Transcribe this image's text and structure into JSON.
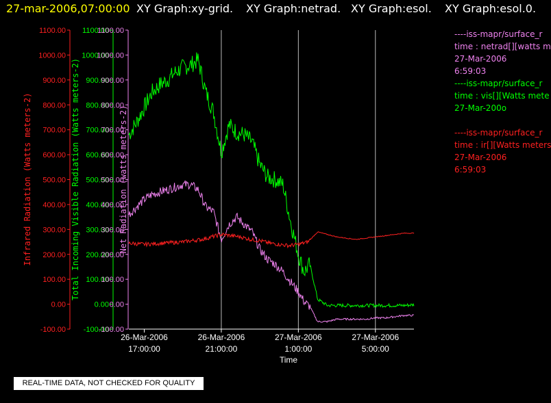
{
  "header": {
    "timestamp": "27-mar-2006,07:00:00",
    "titles": [
      "XY Graph:xy-grid.",
      "XY Graph:netrad.",
      "XY Graph:esol.",
      "XY Graph:esol.0."
    ]
  },
  "notice": "REAL-TIME DATA, NOT CHECKED FOR QUALITY",
  "colors": {
    "ir": "#ff2020",
    "vis": "#00ff00",
    "net": "#ee82ee",
    "title_ts": "#ffff00",
    "text": "#ffffff"
  },
  "legend": [
    {
      "color": "#ee82ee",
      "lines": [
        "----iss-mapr/surface_r",
        "time : netrad[][watts m",
        "27-Mar-2006",
        "6:59:03"
      ]
    },
    {
      "color": "#00ff00",
      "lines": [
        "----iss-mapr/surface_r",
        "time : vis[][Watts mete",
        "27-Mar-200o"
      ]
    },
    {
      "color": "#ff2020",
      "lines": [
        "----iss-mapr/surface_r",
        "time : ir[][Watts meters",
        "27-Mar-2006",
        "6:59:03"
      ]
    }
  ],
  "chart_data": {
    "type": "line",
    "xlabel": "Time",
    "x_ticks": [
      {
        "hour": 17,
        "label": [
          "26-Mar-2006",
          "17:00:00"
        ]
      },
      {
        "hour": 21,
        "label": [
          "26-Mar-2006",
          "21:00:00"
        ]
      },
      {
        "hour": 25,
        "label": [
          "27-Mar-2006",
          "1:00:00"
        ]
      },
      {
        "hour": 29,
        "label": [
          "27-Mar-2006",
          "5:00:00"
        ]
      }
    ],
    "x_unit": "hours from 26-Mar-2006 00:00",
    "xlim": [
      16.2,
      31.0
    ],
    "grid": "vertical lines at 21:00, 1:00, 5:00",
    "y_axes": [
      {
        "label": "Infrared Radiation (Watts meters-2)",
        "color": "#ff2020",
        "range": [
          -100,
          1100
        ],
        "ticks": [
          "1100.00",
          "1000.00",
          "900.00",
          "800.00",
          "700.00",
          "600.00",
          "500.00",
          "400.00",
          "300.00",
          "200.00",
          "100.00",
          "0.00",
          "-100.00"
        ]
      },
      {
        "label": "Total Incoming Visible Radiation (Watts meters-2)",
        "color": "#00ff00",
        "range": [
          -100,
          1100
        ],
        "ticks": [
          "1100.00",
          "1000.00",
          "900.00",
          "800.00",
          "700.00",
          "600.00",
          "500.00",
          "400.00",
          "300.00",
          "200.00",
          "100.00",
          "0.00",
          "-100.00"
        ]
      },
      {
        "label": "Net Radiation (watts meters-2)",
        "color": "#ee82ee",
        "range": [
          -100,
          1100
        ],
        "ticks": [
          "1100.00",
          "1000.00",
          "900.00",
          "800.00",
          "700.00",
          "600.00",
          "500.00",
          "400.00",
          "300.00",
          "200.00",
          "100.00",
          "0.00",
          "-100.00"
        ]
      }
    ],
    "series": [
      {
        "name": "vis",
        "color": "#00ff00",
        "x": [
          16.2,
          16.6,
          17.0,
          17.4,
          17.8,
          18.2,
          18.6,
          19.0,
          19.4,
          19.8,
          20.2,
          20.6,
          21.0,
          21.4,
          21.8,
          22.2,
          22.6,
          23.0,
          23.4,
          23.8,
          24.2,
          24.6,
          25.0,
          25.3,
          25.6,
          26.0,
          26.5,
          27.0,
          27.5,
          28.0,
          28.5,
          29.0,
          29.5,
          30.0,
          30.5,
          31.0
        ],
        "y": [
          680,
          730,
          790,
          850,
          880,
          900,
          930,
          950,
          960,
          980,
          850,
          770,
          610,
          720,
          690,
          680,
          650,
          560,
          510,
          500,
          480,
          330,
          200,
          130,
          160,
          20,
          -5,
          -5,
          -5,
          -5,
          -5,
          -5,
          -5,
          -5,
          -5,
          -2
        ]
      },
      {
        "name": "netrad",
        "color": "#ee82ee",
        "x": [
          16.2,
          16.6,
          17.0,
          17.4,
          17.8,
          18.2,
          18.6,
          19.0,
          19.4,
          19.8,
          20.2,
          20.6,
          21.0,
          21.4,
          21.8,
          22.2,
          22.6,
          23.0,
          23.4,
          23.8,
          24.2,
          24.6,
          25.0,
          25.3,
          25.6,
          26.0,
          26.5,
          27.0,
          27.5,
          28.0,
          28.5,
          29.0,
          29.5,
          30.0,
          30.5,
          31.0
        ],
        "y": [
          360,
          390,
          420,
          440,
          450,
          460,
          470,
          480,
          480,
          460,
          390,
          370,
          260,
          320,
          350,
          320,
          290,
          220,
          180,
          160,
          130,
          90,
          50,
          10,
          -10,
          -70,
          -70,
          -60,
          -60,
          -60,
          -60,
          -55,
          -55,
          -50,
          -45,
          -45
        ]
      },
      {
        "name": "ir",
        "color": "#ff2020",
        "x": [
          16.2,
          17.0,
          18.0,
          19.0,
          20.0,
          20.5,
          21.0,
          21.5,
          22.0,
          22.5,
          23.0,
          23.5,
          24.0,
          24.5,
          25.0,
          25.5,
          26.0,
          26.5,
          27.0,
          27.5,
          28.0,
          28.5,
          29.0,
          29.5,
          30.0,
          30.5,
          31.0
        ],
        "y": [
          245,
          240,
          245,
          250,
          260,
          270,
          280,
          275,
          270,
          260,
          255,
          245,
          240,
          235,
          240,
          250,
          290,
          280,
          270,
          265,
          260,
          265,
          270,
          275,
          280,
          285,
          285
        ]
      }
    ]
  }
}
